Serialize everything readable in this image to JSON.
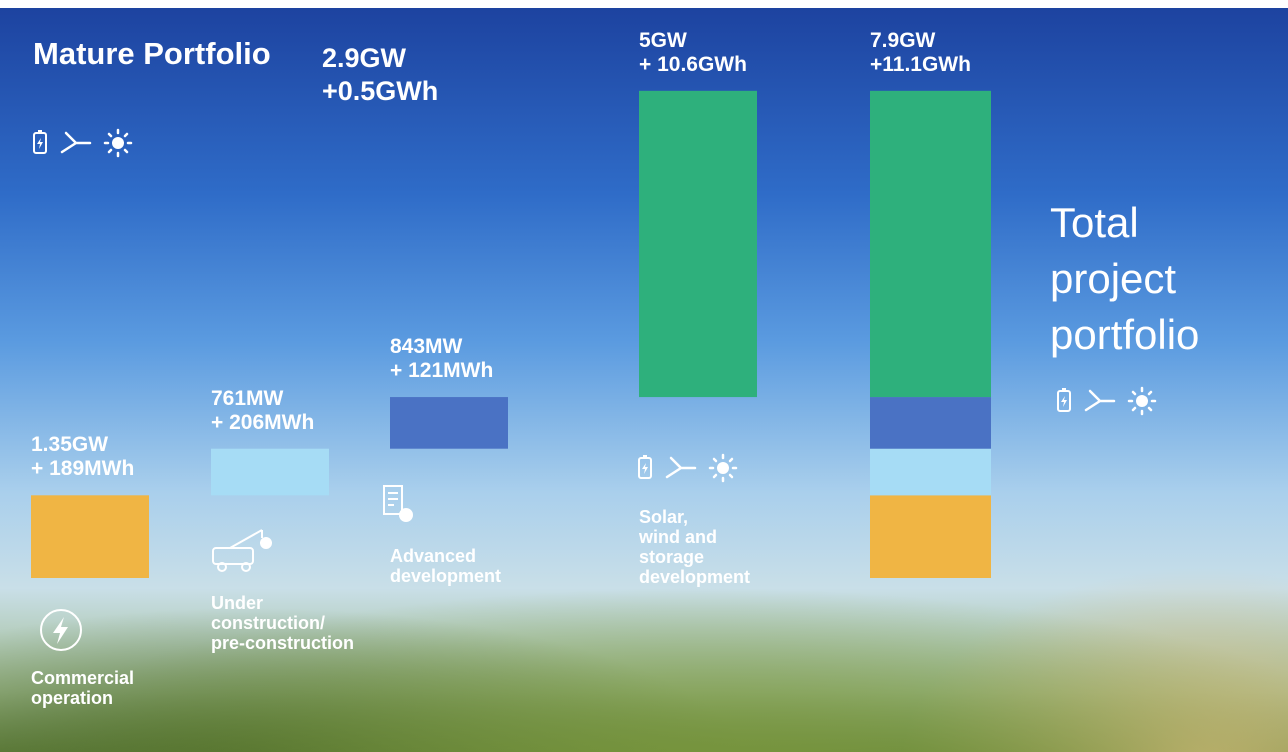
{
  "chart_data": {
    "type": "waterfall",
    "title": "Mature Portfolio",
    "annotation": "2.9GW\n+0.5GWh",
    "total_title": "Total project portfolio",
    "total_label": "7.9GW\n+11.1GWh",
    "categories": [
      "Commercial\noperation",
      "Under\nconstruction/\npre-construction",
      "Advanced\ndevelopment",
      "Solar,\nwind and\nstorage\ndevelopment"
    ],
    "values": [
      1.35,
      0.761,
      0.843,
      5
    ],
    "value_labels": [
      "1.35GW\n+ 189MWh",
      "761MW\n+ 206MWh",
      "843MW\n+ 121MWh",
      "5GW\n+ 10.6GWh"
    ],
    "colors": [
      "#f0b544",
      "#a6dcf5",
      "#4a72c4",
      "#2eb07c"
    ],
    "ylim": [
      0,
      8
    ]
  }
}
